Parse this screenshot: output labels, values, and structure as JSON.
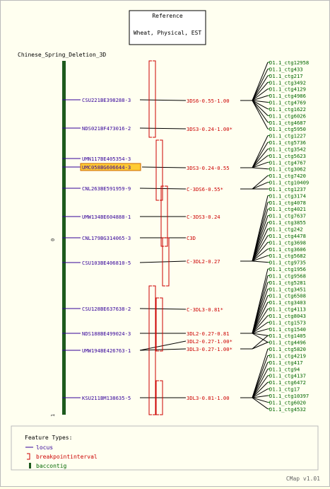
{
  "reference_box": {
    "line1": "Reference",
    "line2": "Wheat, Physical, EST"
  },
  "map_title": "Chinese_Spring_Deletion_3D",
  "axis_ticks": {
    "top": "0",
    "bottom": "1"
  },
  "loci": [
    {
      "label": "CSU221BE398288-3",
      "highlighted": false
    },
    {
      "label": "NDS021BF473016-2",
      "highlighted": false
    },
    {
      "label": "UMN117BE405354-3",
      "highlighted": false
    },
    {
      "label": "UMC058BG606644-3",
      "highlighted": true
    },
    {
      "label": "CNL263BE591959-9",
      "highlighted": false
    },
    {
      "label": "UMW134BE604888-1",
      "highlighted": false
    },
    {
      "label": "CNL179BG314065-3",
      "highlighted": false
    },
    {
      "label": "CSU103BE406810-5",
      "highlighted": false
    },
    {
      "label": "CSU128BE637638-2",
      "highlighted": false
    },
    {
      "label": "NDS188BE499024-3",
      "highlighted": false
    },
    {
      "label": "UMW194BE426763-1",
      "highlighted": false
    },
    {
      "label": "KSU211BM138635-5",
      "highlighted": false
    }
  ],
  "bins": [
    "3DS6-0.55-1.00",
    "3DS3-0.24-1.00*",
    "3DS3-0.24-0.55",
    "C-3DS6-0.55*",
    "C-3DS3-0.24",
    "C3D",
    "C-3DL2-0.27",
    "C-3DL3-0.81*",
    "3DL2-0.27-0.81",
    "3DL2-0.27-1.00*",
    "3DL3-0.27-1.00*",
    "3DL3-0.81-1.00"
  ],
  "contigs": [
    "D1.1_ctg12958",
    "D1.1_ctg433",
    "D1.1_ctg217",
    "D1.1_ctg3492",
    "D1.1_ctg4129",
    "D1.1_ctg4986",
    "D1.1_ctg4769",
    "D1.1_ctg1622",
    "D1.1_ctg6026",
    "D1.1_ctg4687",
    "D1.1_ctg5950",
    "D1.1_ctg1227",
    "D1.1_ctg5736",
    "D1.1_ctg3542",
    "D1.1_ctg5623",
    "D1.1_ctg4767",
    "D1.1_ctg3062",
    "D1.1_ctg7420",
    "D1.1_ctg10409",
    "D1.1_ctg1237",
    "D1.1_ctg3174",
    "D1.1_ctg4078",
    "D1.1_ctg4021",
    "D1.1_ctg7637",
    "D1.1_ctg3855",
    "D1.1_ctg242",
    "D1.1_ctg4478",
    "D1.1_ctg3698",
    "D1.1_ctg3606",
    "D1.1_ctg5682",
    "D1.1_ctg9735",
    "D1.1_ctg1956",
    "D1.1_ctg9568",
    "D1.1_ctg5281",
    "D1.1_ctg3451",
    "D1.1_ctg6508",
    "D1.1_ctg3403",
    "D1.1_ctg4113",
    "D1.1_ctg8043",
    "D1.1_ctg1573",
    "D1.1_ctg1540",
    "D1.1_ctg1405",
    "D1.1_ctg4496",
    "D1.1_ctg5820",
    "D1.1_ctg4219",
    "D1.1_ctg417",
    "D1.1_ctg94",
    "D1.1_ctg4137",
    "D1.1_ctg6472",
    "D1.1_ctg17",
    "D1.1_ctg10397",
    "D1.1_ctg6020",
    "D1.1_ctg4532"
  ],
  "legend": {
    "title": "Feature Types:",
    "items": [
      {
        "label": "locus",
        "icon": "locus-line-icon"
      },
      {
        "label": "breakpointinterval",
        "icon": "bracket-icon"
      },
      {
        "label": "baccontig",
        "icon": "bar-icon"
      }
    ]
  },
  "version": "CMap v1.01",
  "colors": {
    "locus": "#330099",
    "bin": "#cc0000",
    "contig": "#006600",
    "chromosome": "#1d5a1d",
    "highlight": "#ffcc33",
    "connector": "#000000"
  }
}
